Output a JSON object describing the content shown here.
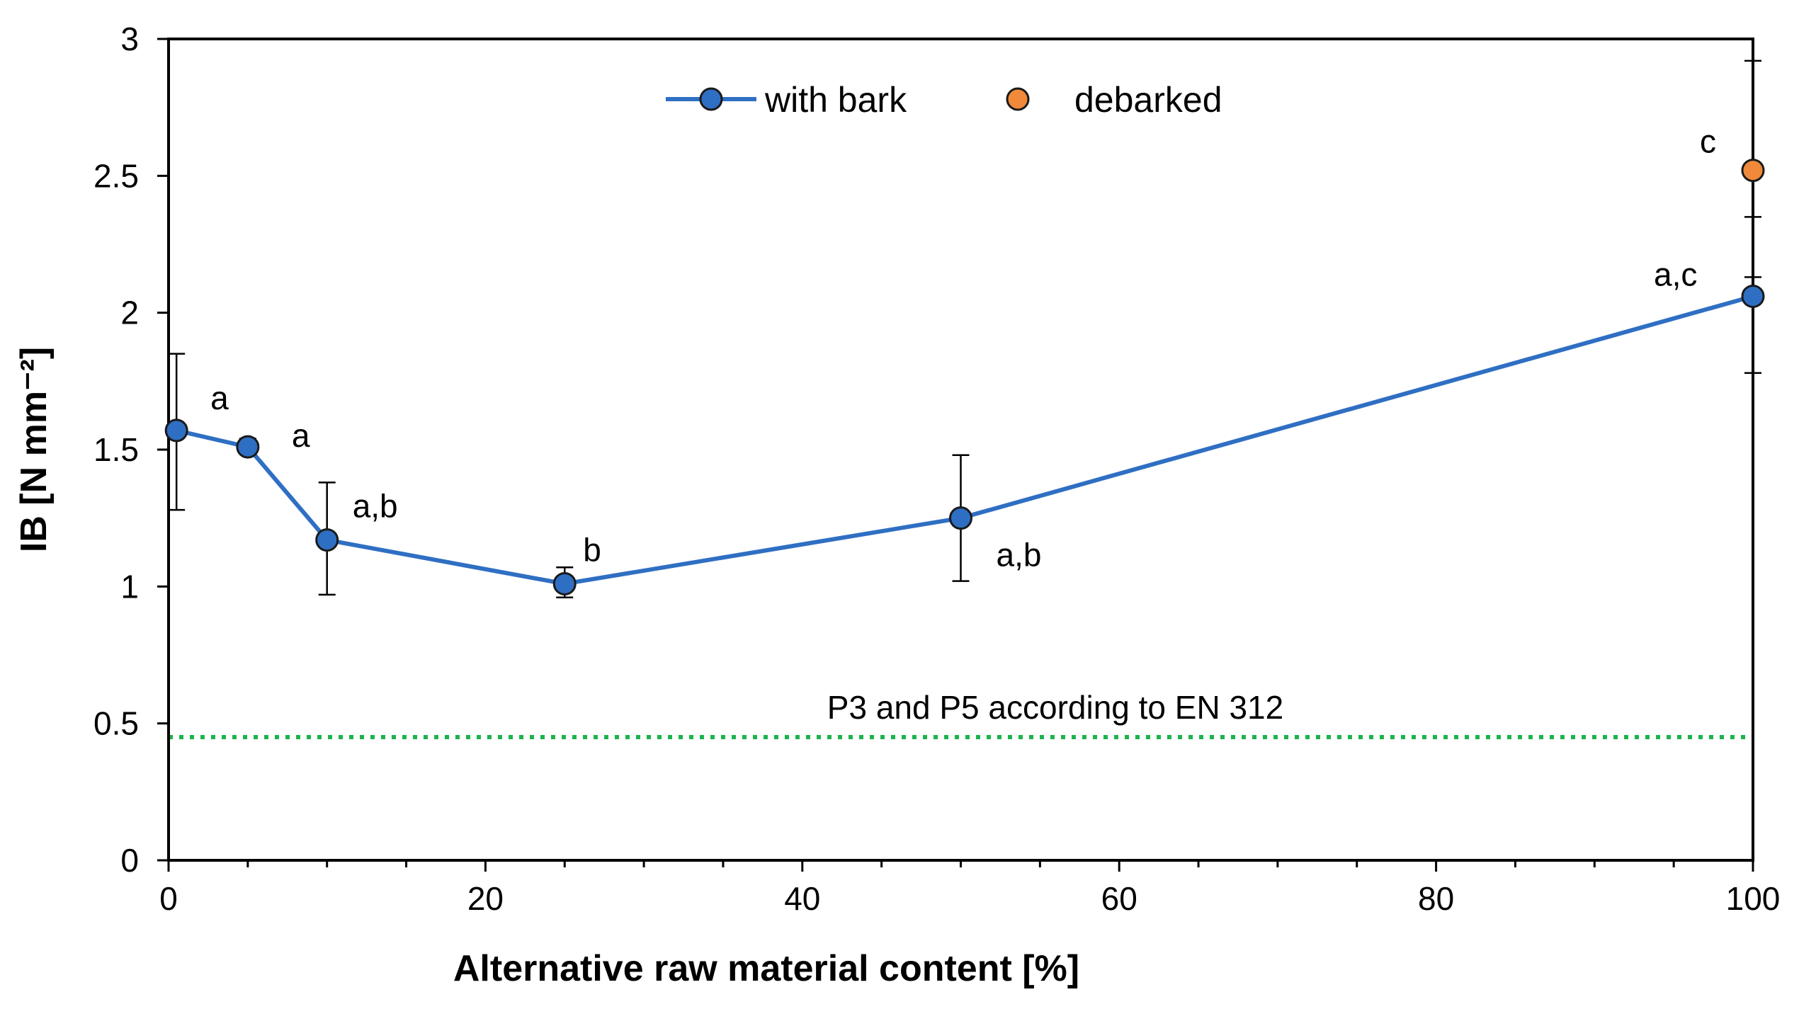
{
  "chart_data": {
    "type": "line",
    "xlabel": "Alternative raw material content [%]",
    "ylabel": "IB [N mm⁻²]",
    "xlim": [
      0,
      100
    ],
    "ylim": [
      0,
      3
    ],
    "x_ticks": [
      0,
      20,
      40,
      60,
      80,
      100
    ],
    "y_ticks": [
      0,
      0.5,
      1,
      1.5,
      2,
      2.5,
      3
    ],
    "x_tick_labels": [
      "0",
      "20",
      "40",
      "60",
      "80",
      "100"
    ],
    "y_tick_labels": [
      "0",
      "0.5",
      "1",
      "1.5",
      "2",
      "2.5",
      "3"
    ],
    "grid": false,
    "legend_position": "top-center",
    "series": [
      {
        "name": "with bark",
        "color": "#2f6fc3",
        "line": true,
        "x": [
          0.5,
          5,
          10,
          25,
          50,
          100
        ],
        "values": [
          1.57,
          1.51,
          1.17,
          1.01,
          1.25,
          2.06
        ],
        "err_low": [
          1.28,
          1.49,
          0.97,
          0.96,
          1.02,
          1.78
        ],
        "err_high": [
          1.85,
          1.54,
          1.38,
          1.07,
          1.48,
          2.35
        ],
        "labels": [
          "a",
          "a",
          "a,b",
          "b",
          "a,b",
          "a,c"
        ]
      },
      {
        "name": "debarked",
        "color": "#f08a3a",
        "line": false,
        "x": [
          100
        ],
        "values": [
          2.52
        ],
        "err_low": [
          2.13
        ],
        "err_high": [
          2.92
        ],
        "labels": [
          "c"
        ]
      }
    ],
    "reference_line": {
      "y": 0.45,
      "x_range": [
        0,
        100
      ],
      "label": "P3 and P5 according to EN 312",
      "color": "#1db34a",
      "style": "dotted"
    }
  }
}
